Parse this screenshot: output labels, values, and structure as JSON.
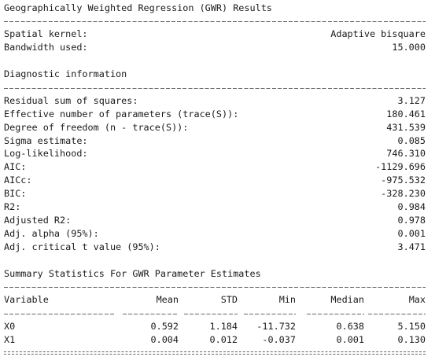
{
  "title": "Geographically Weighted Regression (GWR) Results",
  "kernel_section": {
    "rows": [
      [
        "Spatial kernel:",
        "Adaptive bisquare"
      ],
      [
        "Bandwidth used:",
        "15.000"
      ]
    ]
  },
  "diagnostics": {
    "title": "Diagnostic information",
    "rows": [
      [
        "Residual sum of squares:",
        "3.127"
      ],
      [
        "Effective number of parameters (trace(S)):",
        "180.461"
      ],
      [
        "Degree of freedom (n - trace(S)):",
        "431.539"
      ],
      [
        "Sigma estimate:",
        "0.085"
      ],
      [
        "Log-likelihood:",
        "746.310"
      ],
      [
        "AIC:",
        "-1129.696"
      ],
      [
        "AICc:",
        "-975.532"
      ],
      [
        "BIC:",
        "-328.230"
      ],
      [
        "R2:",
        "0.984"
      ],
      [
        "Adjusted R2:",
        "0.978"
      ],
      [
        "Adj. alpha (95%):",
        "0.001"
      ],
      [
        "Adj. critical t value (95%):",
        "3.471"
      ]
    ]
  },
  "parameters": {
    "title": "Summary Statistics For GWR Parameter Estimates",
    "columns": [
      "Variable",
      "Mean",
      "STD",
      "Min",
      "Median",
      "Max"
    ],
    "rows": [
      [
        "X0",
        "0.592",
        "1.184",
        "-11.732",
        "0.638",
        "5.150"
      ],
      [
        "X1",
        "0.004",
        "0.012",
        "-0.037",
        "0.001",
        "0.130"
      ]
    ]
  }
}
